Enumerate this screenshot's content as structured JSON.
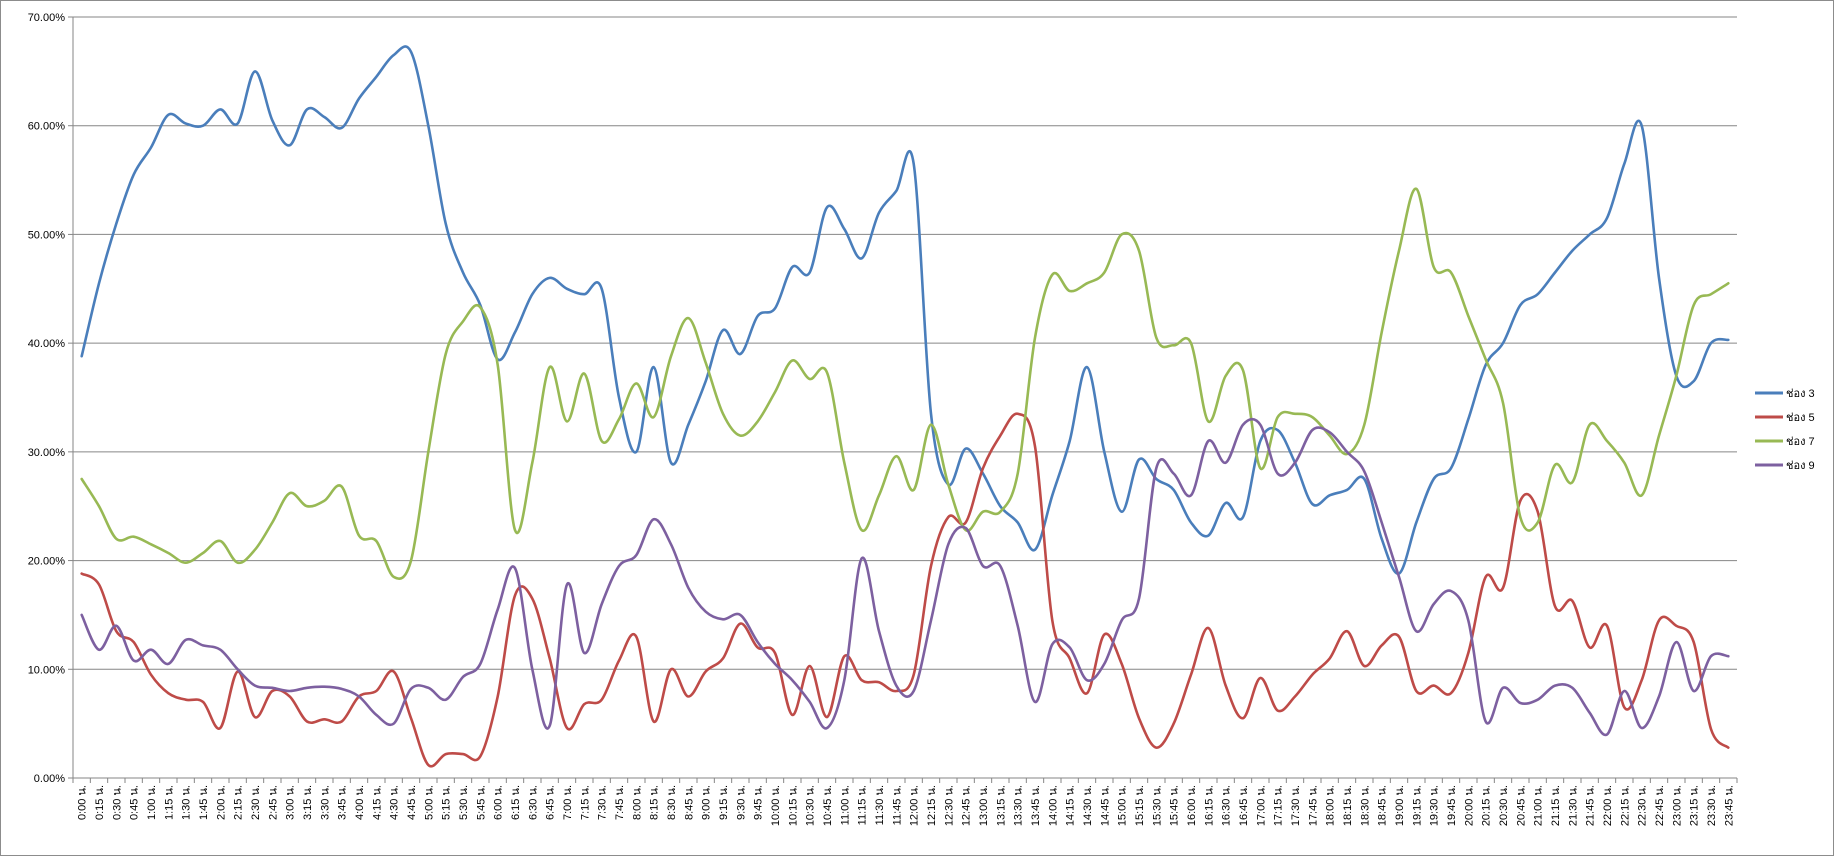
{
  "chart_data": {
    "type": "line",
    "title": "",
    "xlabel": "",
    "ylabel": "",
    "ylim": [
      0,
      70
    ],
    "y_ticks": [
      "0.00%",
      "10.00%",
      "20.00%",
      "30.00%",
      "40.00%",
      "50.00%",
      "60.00%",
      "70.00%"
    ],
    "grid": true,
    "legend_position": "right",
    "categories": [
      "0:00 น.",
      "0:15 น.",
      "0:30 น.",
      "0:45 น.",
      "1:00 น.",
      "1:15 น.",
      "1:30 น.",
      "1:45 น.",
      "2:00 น.",
      "2:15 น.",
      "2:30 น.",
      "2:45 น.",
      "3:00 น.",
      "3:15 น.",
      "3:30 น.",
      "3:45 น.",
      "4:00 น.",
      "4:15 น.",
      "4:30 น.",
      "4:45 น.",
      "5:00 น.",
      "5:15 น.",
      "5:30 น.",
      "5:45 น.",
      "6:00 น.",
      "6:15 น.",
      "6:30 น.",
      "6:45 น.",
      "7:00 น.",
      "7:15 น.",
      "7:30 น.",
      "7:45 น.",
      "8:00 น.",
      "8:15 น.",
      "8:30 น.",
      "8:45 น.",
      "9:00 น.",
      "9:15 น.",
      "9:30 น.",
      "9:45 น.",
      "10:00 น.",
      "10:15 น.",
      "10:30 น.",
      "10:45 น.",
      "11:00 น.",
      "11:15 น.",
      "11:30 น.",
      "11:45 น.",
      "12:00 น.",
      "12:15 น.",
      "12:30 น.",
      "12:45 น.",
      "13:00 น.",
      "13:15 น.",
      "13:30 น.",
      "13:45 น.",
      "14:00 น.",
      "14:15 น.",
      "14:30 น.",
      "14:45 น.",
      "15:00 น.",
      "15:15 น.",
      "15:30 น.",
      "15:45 น.",
      "16:00 น.",
      "16:15 น.",
      "16:30 น.",
      "16:45 น.",
      "17:00 น.",
      "17:15 น.",
      "17:30 น.",
      "17:45 น.",
      "18:00 น.",
      "18:15 น.",
      "18:30 น.",
      "18:45 น.",
      "19:00 น.",
      "19:15 น.",
      "19:30 น.",
      "19:45 น.",
      "20:00 น.",
      "20:15 น.",
      "20:30 น.",
      "20:45 น.",
      "21:00 น.",
      "21:15 น.",
      "21:30 น.",
      "21:45 น.",
      "22:00 น.",
      "22:15 น.",
      "22:30 น.",
      "22:45 น.",
      "23:00 น.",
      "23:15 น.",
      "23:30 น.",
      "23:45 น."
    ],
    "series": [
      {
        "name": "ช่อง 3",
        "color": "#4a7ebb",
        "values": [
          38.8,
          45.5,
          51.0,
          55.5,
          58.0,
          61.0,
          60.2,
          60.0,
          61.5,
          60.2,
          65.0,
          60.5,
          58.2,
          61.5,
          60.8,
          59.8,
          62.5,
          64.5,
          66.5,
          66.8,
          60.0,
          51.0,
          46.5,
          43.5,
          38.5,
          41.0,
          44.5,
          46.0,
          45.0,
          44.5,
          45.0,
          35.0,
          30.0,
          37.8,
          29.0,
          32.5,
          36.5,
          41.2,
          39.0,
          42.5,
          43.2,
          47.0,
          46.5,
          52.5,
          50.5,
          47.8,
          52.0,
          54.0,
          56.5,
          33.5,
          27.0,
          30.3,
          28.0,
          25.0,
          23.5,
          21.0,
          26.0,
          31.0,
          37.8,
          30.0,
          24.5,
          29.3,
          27.5,
          26.5,
          23.5,
          22.3,
          25.3,
          24.0,
          31.0,
          32.0,
          29.0,
          25.2,
          26.0,
          26.5,
          27.5,
          22.0,
          18.8,
          23.5,
          27.5,
          28.5,
          33.0,
          38.0,
          40.0,
          43.5,
          44.5,
          46.5,
          48.5,
          50.0,
          51.5,
          56.5,
          60.0,
          46.0,
          37.0,
          36.5,
          40.0,
          40.3
        ]
      },
      {
        "name": "ช่อง 5",
        "color": "#be4b48",
        "values": [
          18.8,
          17.8,
          13.5,
          12.5,
          9.5,
          7.8,
          7.2,
          7.0,
          4.6,
          9.8,
          5.6,
          8.0,
          7.5,
          5.2,
          5.4,
          5.2,
          7.5,
          8.0,
          9.8,
          5.5,
          1.2,
          2.2,
          2.2,
          2.0,
          7.5,
          16.8,
          16.5,
          11.0,
          4.6,
          6.8,
          7.2,
          10.8,
          13.0,
          5.2,
          10.0,
          7.5,
          9.8,
          11.0,
          14.2,
          12.0,
          11.5,
          5.8,
          10.3,
          5.6,
          11.2,
          9.0,
          8.8,
          8.0,
          9.5,
          19.5,
          24.0,
          23.5,
          28.5,
          31.5,
          33.5,
          30.5,
          14.5,
          11.0,
          7.8,
          13.2,
          10.5,
          5.5,
          2.8,
          5.0,
          9.5,
          13.8,
          8.5,
          5.5,
          9.2,
          6.2,
          7.5,
          9.5,
          11.0,
          13.5,
          10.3,
          12.2,
          13.0,
          8.0,
          8.5,
          7.8,
          11.5,
          18.5,
          17.5,
          25.5,
          24.5,
          15.8,
          16.3,
          12.0,
          14.0,
          6.5,
          9.0,
          14.5,
          14.0,
          12.5,
          4.5,
          2.8
        ]
      },
      {
        "name": "ช่อง 7",
        "color": "#98b954",
        "values": [
          27.5,
          25.0,
          22.0,
          22.2,
          21.5,
          20.7,
          19.8,
          20.7,
          21.8,
          19.8,
          21.0,
          23.5,
          26.2,
          25.0,
          25.5,
          26.8,
          22.3,
          21.8,
          18.5,
          20.0,
          30.0,
          39.0,
          42.0,
          43.3,
          38.0,
          22.8,
          29.0,
          37.8,
          32.8,
          37.2,
          31.0,
          33.0,
          36.3,
          33.2,
          38.8,
          42.3,
          38.2,
          33.5,
          31.5,
          32.8,
          35.5,
          38.4,
          36.7,
          37.3,
          29.0,
          22.8,
          26.0,
          29.6,
          26.5,
          32.5,
          27.0,
          22.8,
          24.5,
          24.5,
          28.0,
          40.5,
          46.3,
          44.8,
          45.5,
          46.5,
          50.0,
          48.5,
          40.5,
          39.8,
          40.0,
          32.8,
          37.0,
          37.5,
          28.5,
          33.2,
          33.5,
          33.2,
          31.5,
          29.8,
          32.5,
          41.0,
          48.5,
          54.2,
          47.0,
          46.5,
          42.5,
          38.5,
          34.5,
          24.0,
          23.5,
          28.8,
          27.2,
          32.5,
          31.0,
          29.0,
          26.0,
          31.5,
          37.0,
          43.5,
          44.5,
          45.5
        ]
      },
      {
        "name": "ช่อง 9",
        "color": "#7d60a0",
        "values": [
          15.0,
          11.8,
          14.0,
          10.8,
          11.8,
          10.5,
          12.7,
          12.2,
          11.8,
          10.0,
          8.5,
          8.3,
          8.0,
          8.3,
          8.4,
          8.2,
          7.5,
          5.8,
          5.0,
          8.2,
          8.3,
          7.2,
          9.3,
          10.5,
          15.5,
          19.3,
          10.0,
          4.8,
          17.8,
          11.5,
          16.0,
          19.5,
          20.5,
          23.8,
          21.5,
          17.5,
          15.3,
          14.6,
          15.0,
          12.5,
          10.5,
          9.0,
          7.0,
          4.6,
          9.0,
          20.2,
          13.5,
          8.5,
          8.0,
          14.5,
          21.5,
          23.0,
          19.5,
          19.5,
          14.0,
          7.0,
          12.3,
          12.0,
          9.0,
          10.5,
          14.5,
          16.5,
          28.5,
          28.0,
          26.0,
          31.0,
          29.0,
          32.5,
          32.5,
          28.0,
          29.0,
          32.0,
          31.8,
          30.0,
          28.2,
          23.5,
          18.5,
          13.5,
          16.0,
          17.2,
          14.5,
          5.2,
          8.3,
          6.9,
          7.2,
          8.5,
          8.3,
          6.0,
          4.0,
          8.0,
          4.6,
          7.5,
          12.5,
          8.0,
          11.2,
          11.2
        ]
      }
    ]
  }
}
